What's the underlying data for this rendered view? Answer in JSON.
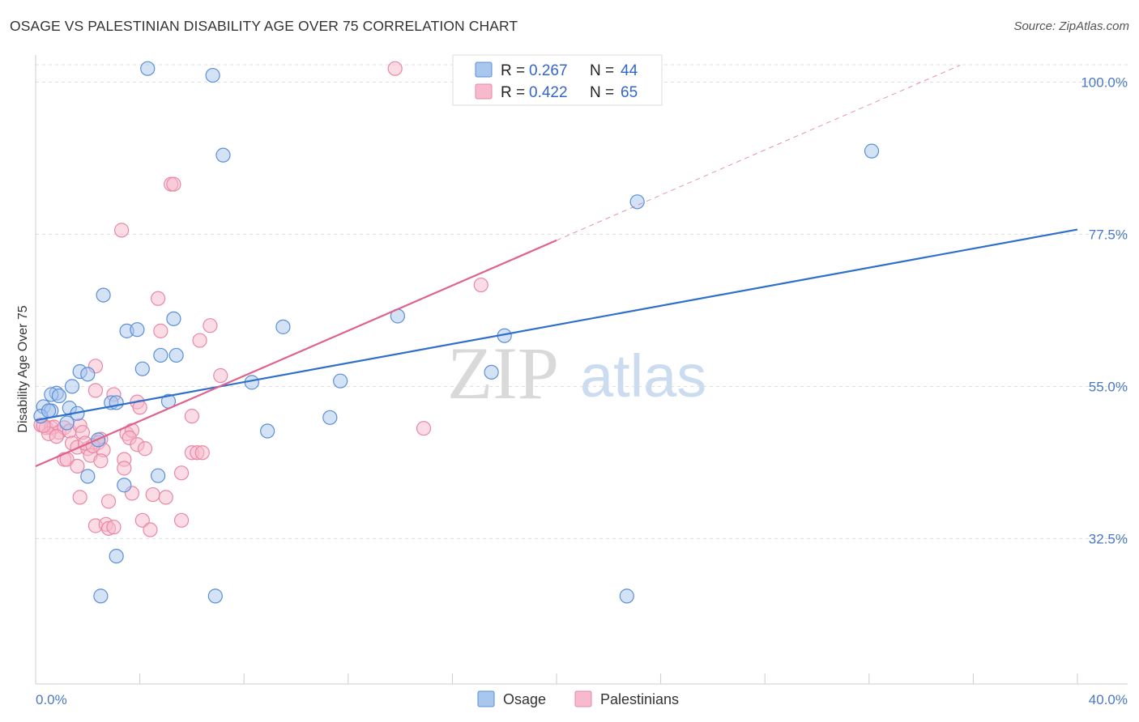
{
  "title": "OSAGE VS PALESTINIAN DISABILITY AGE OVER 75 CORRELATION CHART",
  "source": "Source: ZipAtlas.com",
  "watermark": {
    "zip": "ZIP",
    "atlas": "atlas"
  },
  "colors": {
    "osage_fill": "#a9c6ee",
    "osage_stroke": "#5b8fd6",
    "osage_line": "#2f6fcc",
    "pal_fill": "#f7b9cc",
    "pal_stroke": "#e887a7",
    "pal_line": "#e0628c",
    "grid": "#dddddd",
    "axis_label": "#4a78c2"
  },
  "chart_data": {
    "type": "scatter",
    "title": "OSAGE VS PALESTINIAN DISABILITY AGE OVER 75 CORRELATION CHART",
    "xlabel": "",
    "ylabel": "Disability Age Over 75",
    "xlim": [
      0,
      40
    ],
    "ylim": [
      11,
      104
    ],
    "x_tick_labels": [
      "0.0%",
      "40.0%"
    ],
    "y_ticks": [
      32.5,
      55.0,
      77.5,
      100.0
    ],
    "y_tick_labels": [
      "32.5%",
      "55.0%",
      "77.5%",
      "100.0%"
    ],
    "legend": [
      {
        "series": "Osage",
        "r_label": "R =",
        "r": "0.267",
        "n_label": "N =",
        "n": "44"
      },
      {
        "series": "Palestinians",
        "r_label": "R =",
        "r": "0.422",
        "n_label": "N =",
        "n": "65"
      }
    ],
    "series": [
      {
        "name": "Osage",
        "trend": {
          "x0": 0,
          "y0": 50.0,
          "x1": 40,
          "y1": 78.2
        },
        "points": [
          [
            4.3,
            102
          ],
          [
            6.8,
            101
          ],
          [
            7.2,
            89.2
          ],
          [
            32.1,
            89.8
          ],
          [
            23.1,
            82.3
          ],
          [
            2.6,
            68.5
          ],
          [
            3.5,
            63.2
          ],
          [
            3.9,
            63.4
          ],
          [
            5.3,
            65.0
          ],
          [
            9.5,
            63.8
          ],
          [
            13.9,
            65.4
          ],
          [
            18.0,
            62.5
          ],
          [
            4.1,
            57.6
          ],
          [
            4.8,
            59.6
          ],
          [
            5.4,
            59.6
          ],
          [
            1.7,
            57.2
          ],
          [
            2.0,
            56.8
          ],
          [
            1.4,
            55.0
          ],
          [
            0.8,
            54.0
          ],
          [
            0.6,
            53.8
          ],
          [
            0.9,
            53.6
          ],
          [
            8.3,
            55.6
          ],
          [
            11.7,
            55.8
          ],
          [
            17.5,
            57.1
          ],
          [
            0.3,
            52.0
          ],
          [
            0.6,
            51.4
          ],
          [
            1.3,
            51.8
          ],
          [
            1.6,
            51.0
          ],
          [
            2.9,
            52.6
          ],
          [
            3.1,
            52.6
          ],
          [
            5.1,
            52.8
          ],
          [
            0.2,
            50.6
          ],
          [
            1.2,
            49.6
          ],
          [
            2.4,
            47.1
          ],
          [
            11.3,
            50.4
          ],
          [
            8.9,
            48.4
          ],
          [
            2.0,
            41.7
          ],
          [
            3.4,
            40.4
          ],
          [
            4.7,
            41.8
          ],
          [
            3.1,
            29.9
          ],
          [
            2.5,
            24.0
          ],
          [
            6.9,
            24.0
          ],
          [
            22.7,
            24.0
          ],
          [
            0.5,
            51.4
          ]
        ]
      },
      {
        "name": "Palestinians",
        "trend": {
          "x0": 0,
          "y0": 43.2,
          "x1": 20,
          "y1": 76.6
        },
        "trend_extension": {
          "x0": 20,
          "y0": 76.6,
          "x1": 35.5,
          "y1": 102.5
        },
        "points": [
          [
            13.8,
            102
          ],
          [
            5.2,
            84.9
          ],
          [
            5.3,
            84.9
          ],
          [
            3.3,
            78.1
          ],
          [
            4.7,
            68.0
          ],
          [
            17.1,
            70.0
          ],
          [
            4.8,
            63.2
          ],
          [
            6.7,
            64.0
          ],
          [
            6.3,
            61.8
          ],
          [
            2.3,
            58.0
          ],
          [
            7.1,
            56.6
          ],
          [
            2.3,
            54.4
          ],
          [
            3.0,
            53.8
          ],
          [
            3.9,
            52.7
          ],
          [
            4.0,
            51.9
          ],
          [
            6.0,
            50.6
          ],
          [
            0.2,
            49.3
          ],
          [
            0.4,
            48.9
          ],
          [
            0.6,
            48.9
          ],
          [
            0.7,
            49.0
          ],
          [
            0.9,
            48.2
          ],
          [
            1.1,
            48.9
          ],
          [
            1.3,
            48.4
          ],
          [
            0.5,
            48.0
          ],
          [
            0.8,
            47.6
          ],
          [
            1.7,
            49.2
          ],
          [
            1.8,
            48.2
          ],
          [
            2.5,
            47.2
          ],
          [
            3.5,
            48.0
          ],
          [
            3.7,
            48.5
          ],
          [
            3.6,
            47.4
          ],
          [
            14.9,
            48.8
          ],
          [
            1.4,
            46.6
          ],
          [
            1.6,
            46.0
          ],
          [
            2.0,
            45.8
          ],
          [
            2.4,
            46.7
          ],
          [
            2.6,
            45.6
          ],
          [
            2.1,
            44.8
          ],
          [
            6.0,
            45.2
          ],
          [
            6.2,
            45.2
          ],
          [
            6.4,
            45.2
          ],
          [
            1.1,
            44.2
          ],
          [
            1.2,
            44.2
          ],
          [
            2.5,
            44.0
          ],
          [
            3.4,
            44.2
          ],
          [
            1.6,
            43.2
          ],
          [
            3.4,
            42.9
          ],
          [
            5.6,
            42.2
          ],
          [
            1.7,
            38.6
          ],
          [
            2.8,
            38.0
          ],
          [
            3.7,
            39.2
          ],
          [
            4.5,
            39.0
          ],
          [
            5.0,
            38.6
          ],
          [
            4.1,
            35.2
          ],
          [
            5.6,
            35.2
          ],
          [
            2.3,
            34.4
          ],
          [
            2.7,
            34.6
          ],
          [
            2.8,
            34.0
          ],
          [
            4.4,
            33.8
          ],
          [
            3.0,
            34.2
          ],
          [
            1.9,
            46.6
          ],
          [
            0.3,
            49.2
          ],
          [
            3.9,
            46.4
          ],
          [
            4.2,
            45.8
          ],
          [
            2.2,
            46.2
          ]
        ]
      }
    ]
  }
}
